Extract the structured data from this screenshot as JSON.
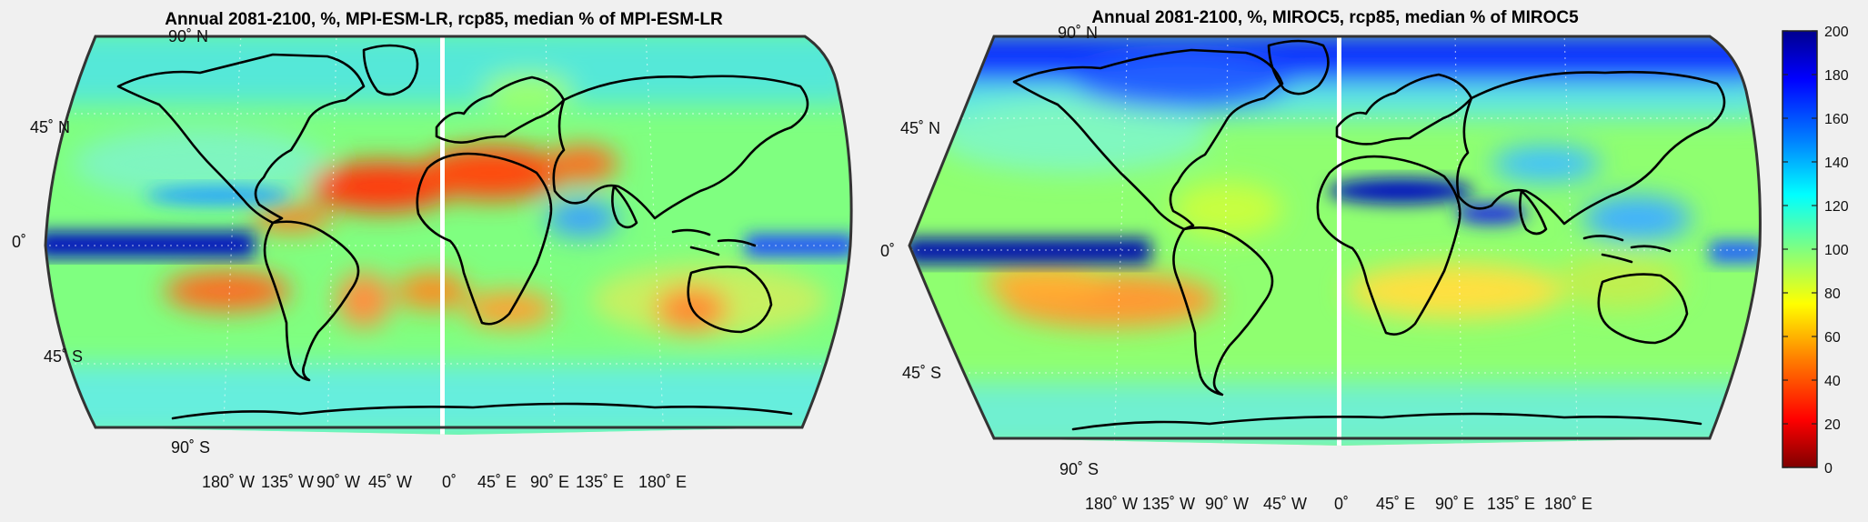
{
  "colormap": {
    "name": "jet-reversed",
    "stops": [
      "#7f0000",
      "#ff0000",
      "#ff8000",
      "#ffff00",
      "#80ff80",
      "#00ffff",
      "#0080ff",
      "#0000ff",
      "#00008f"
    ],
    "range": [
      0,
      200
    ],
    "ticks": [
      "0",
      "20",
      "40",
      "60",
      "80",
      "100",
      "120",
      "140",
      "160",
      "180",
      "200"
    ]
  },
  "maps": [
    {
      "title": "Annual 2081-2100, %, MPI-ESM-LR, rcp85, median % of MPI-ESM-LR",
      "lat_labels": [
        "90˚ N",
        "45˚ N",
        "0˚",
        "45˚ S",
        "90˚ S"
      ],
      "lon_labels": [
        "180˚ W",
        "135˚ W",
        "90˚ W",
        "45˚ W",
        "0˚",
        "45˚ E",
        "90˚ E",
        "135˚ E",
        "180˚ E"
      ]
    },
    {
      "title": "Annual 2081-2100, %, MIROC5, rcp85, median % of MIROC5",
      "lat_labels": [
        "90˚ N",
        "45˚ N",
        "0˚",
        "45˚ S",
        "90˚ S"
      ],
      "lon_labels": [
        "180˚ W",
        "135˚ W",
        "90˚ W",
        "45˚ W",
        "0˚",
        "45˚ E",
        "90˚ E",
        "135˚ E",
        "180˚ E"
      ]
    }
  ]
}
